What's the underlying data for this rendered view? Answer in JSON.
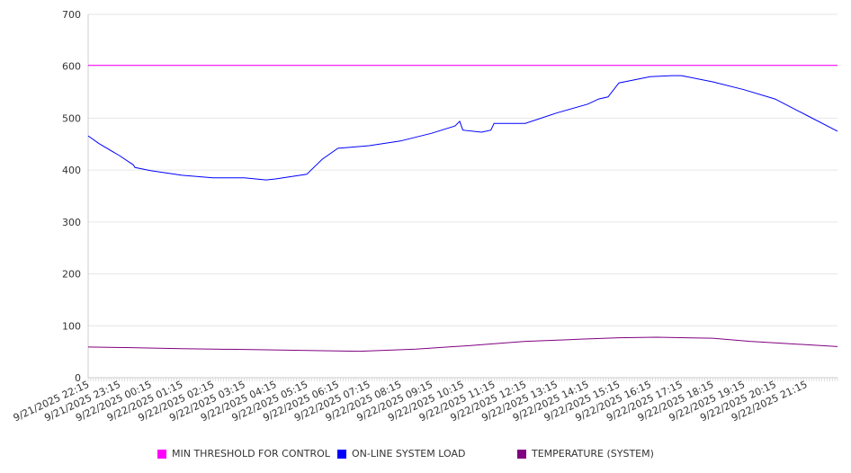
{
  "chart_data": {
    "type": "line",
    "title": "",
    "xlabel": "",
    "ylabel": "",
    "ylim": [
      0,
      700
    ],
    "yticks": [
      0,
      100,
      200,
      300,
      400,
      500,
      600,
      700
    ],
    "xlim_hours": [
      0,
      24
    ],
    "xtick_labels": [
      "9/21/2025 22:15",
      "9/21/2025 23:15",
      "9/22/2025 00:15",
      "9/22/2025 01:15",
      "9/22/2025 02:15",
      "9/22/2025 03:15",
      "9/22/2025 04:15",
      "9/22/2025 05:15",
      "9/22/2025 06:15",
      "9/22/2025 07:15",
      "9/22/2025 08:15",
      "9/22/2025 09:15",
      "9/22/2025 10:15",
      "9/22/2025 11:15",
      "9/22/2025 12:15",
      "9/22/2025 13:15",
      "9/22/2025 14:15",
      "9/22/2025 15:15",
      "9/22/2025 16:15",
      "9/22/2025 17:15",
      "9/22/2025 18:15",
      "9/22/2025 19:15",
      "9/22/2025 20:15",
      "9/22/2025 21:15"
    ],
    "grid": true,
    "legend_position": "bottom",
    "series": [
      {
        "name": "MIN THRESHOLD FOR CONTROL",
        "color": "#ff00ff",
        "x": [
          0,
          24
        ],
        "y": [
          602,
          602
        ]
      },
      {
        "name": "ON-LINE SYSTEM LOAD",
        "color": "#0000ff",
        "x": [
          0,
          0.35,
          1,
          1.45,
          1.5,
          2,
          3,
          4,
          5,
          5.7,
          6,
          7,
          7.5,
          8,
          9,
          10,
          11,
          11.75,
          11.9,
          12,
          12.6,
          12.9,
          13,
          14,
          15,
          16,
          16.35,
          16.65,
          17,
          18,
          18.7,
          19,
          20,
          21,
          22,
          23,
          24
        ],
        "y": [
          466,
          451,
          428,
          410,
          405,
          399,
          390,
          385,
          385,
          381,
          383,
          392,
          421,
          442,
          447,
          456,
          471,
          485,
          494,
          477,
          473,
          477,
          490,
          490,
          510,
          527,
          537,
          541,
          568,
          580,
          582,
          582,
          570,
          555,
          537,
          506,
          475
        ]
      },
      {
        "name": "TEMPERATURE (SYSTEM)",
        "color": "#800080",
        "x": [
          0,
          1.2,
          3,
          5.25,
          7.5,
          8.7,
          10.5,
          12.25,
          14,
          15.7,
          17,
          18.2,
          20,
          21.2,
          24
        ],
        "y": [
          59,
          58,
          56,
          54,
          52,
          51,
          55,
          62,
          70,
          74,
          77,
          78,
          76,
          70,
          60
        ]
      }
    ]
  }
}
